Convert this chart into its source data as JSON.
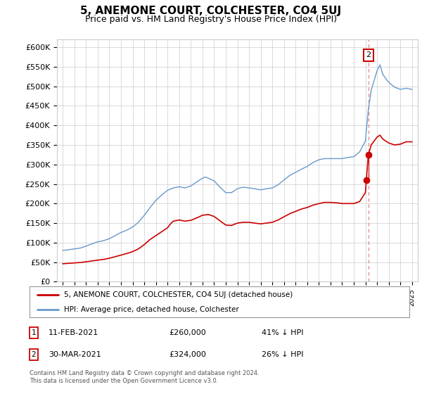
{
  "title": "5, ANEMONE COURT, COLCHESTER, CO4 5UJ",
  "subtitle": "Price paid vs. HM Land Registry's House Price Index (HPI)",
  "ylabel_ticks": [
    "£0",
    "£50K",
    "£100K",
    "£150K",
    "£200K",
    "£250K",
    "£300K",
    "£350K",
    "£400K",
    "£450K",
    "£500K",
    "£550K",
    "£600K"
  ],
  "ytick_values": [
    0,
    50000,
    100000,
    150000,
    200000,
    250000,
    300000,
    350000,
    400000,
    450000,
    500000,
    550000,
    600000
  ],
  "xlim": [
    1994.5,
    2025.5
  ],
  "ylim": [
    0,
    620000
  ],
  "hpi_color": "#6699cc",
  "price_color": "#cc0000",
  "marker_color": "#cc0000",
  "dashed_line_color": "#dd8888",
  "title_fontsize": 11,
  "subtitle_fontsize": 9,
  "legend_label_price": "5, ANEMONE COURT, COLCHESTER, CO4 5UJ (detached house)",
  "legend_label_hpi": "HPI: Average price, detached house, Colchester",
  "sale1_x": 2021.08,
  "sale1_y": 260000,
  "sale2_x": 2021.25,
  "sale2_y": 324000,
  "transaction1_date": "11-FEB-2021",
  "transaction1_price": "£260,000",
  "transaction1_note": "41% ↓ HPI",
  "transaction2_date": "30-MAR-2021",
  "transaction2_price": "£324,000",
  "transaction2_note": "26% ↓ HPI",
  "footnote": "Contains HM Land Registry data © Crown copyright and database right 2024.\nThis data is licensed under the Open Government Licence v3.0.",
  "bg_color": "#ffffff",
  "grid_color": "#cccccc"
}
